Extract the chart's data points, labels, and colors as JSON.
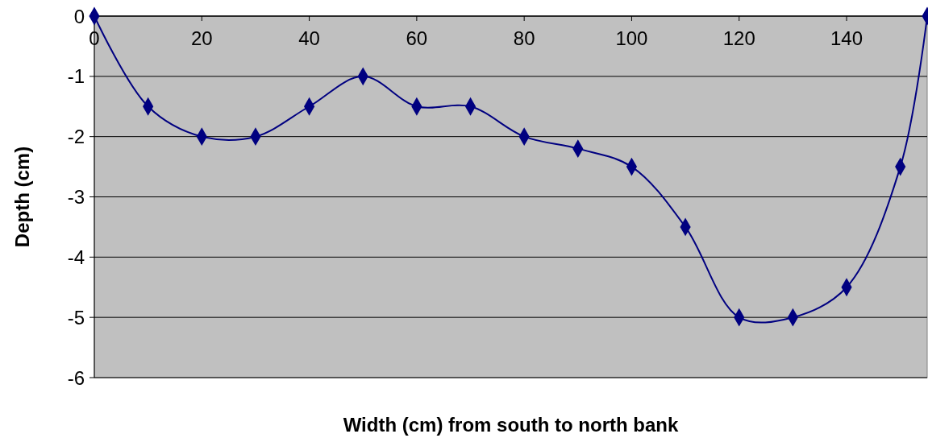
{
  "chart_data": {
    "type": "line",
    "xlabel": "Width (cm) from south to north bank",
    "ylabel": "Depth (cm)",
    "x": [
      0,
      10,
      20,
      30,
      40,
      50,
      60,
      70,
      80,
      90,
      100,
      110,
      120,
      130,
      140,
      150,
      155
    ],
    "series": [
      {
        "color": "#000080",
        "values": [
          0,
          -1.5,
          -2,
          -2,
          -1.5,
          -1,
          -1.5,
          -1.5,
          -2,
          -2.2,
          -2.5,
          -3.5,
          -5,
          -5,
          -4.5,
          -2.5,
          0
        ]
      }
    ],
    "xlim": [
      0,
      155
    ],
    "xticks": [
      0,
      20,
      40,
      60,
      80,
      100,
      120,
      140
    ],
    "ylim": [
      -6,
      0
    ],
    "yticks": [
      0,
      -1,
      -2,
      -3,
      -4,
      -5,
      -6
    ],
    "grid": "y",
    "marker": "diamond",
    "line_style": "solid"
  }
}
